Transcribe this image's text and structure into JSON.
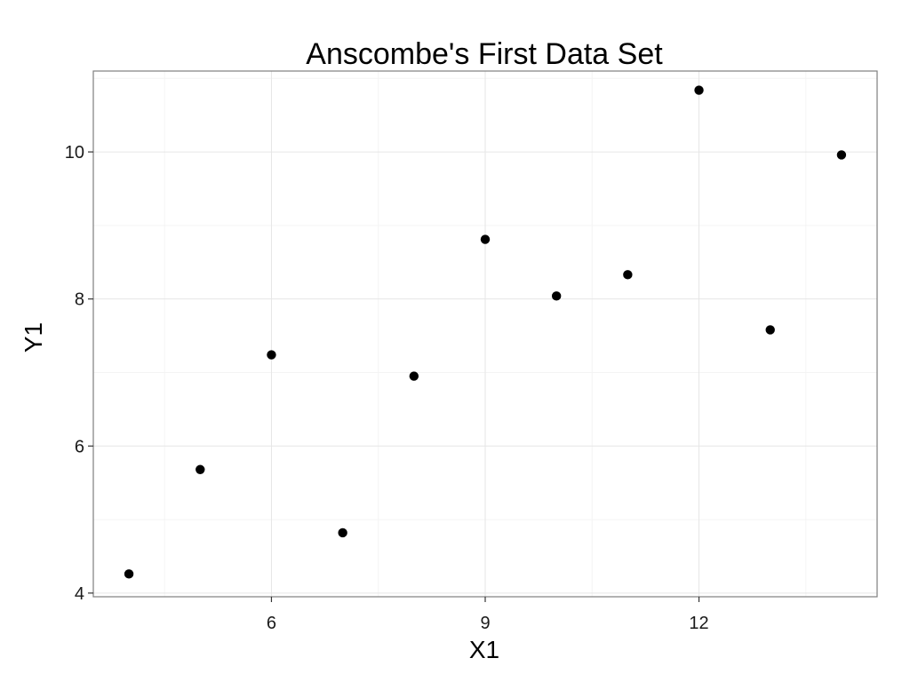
{
  "chart_data": {
    "type": "scatter",
    "title": "Anscombe's First Data Set",
    "xlabel": "X1",
    "ylabel": "Y1",
    "xlim": [
      3.5,
      14.5
    ],
    "ylim": [
      3.95,
      11.1
    ],
    "x_ticks": [
      6,
      9,
      12
    ],
    "y_ticks": [
      4,
      6,
      8,
      10
    ],
    "x_tick_labels": [
      "6",
      "9",
      "12"
    ],
    "y_tick_labels": [
      "4",
      "6",
      "8",
      "10"
    ],
    "x_minor": [
      4.5,
      7.5,
      10.5,
      13.5
    ],
    "y_minor": [
      5,
      7,
      9,
      11
    ],
    "grid": true,
    "legend": "none",
    "point_color": "#000000",
    "points": [
      {
        "x": 10,
        "y": 8.04
      },
      {
        "x": 8,
        "y": 6.95
      },
      {
        "x": 13,
        "y": 7.58
      },
      {
        "x": 9,
        "y": 8.81
      },
      {
        "x": 11,
        "y": 8.33
      },
      {
        "x": 14,
        "y": 9.96
      },
      {
        "x": 6,
        "y": 7.24
      },
      {
        "x": 4,
        "y": 4.26
      },
      {
        "x": 12,
        "y": 10.84
      },
      {
        "x": 7,
        "y": 4.82
      },
      {
        "x": 5,
        "y": 5.68
      }
    ]
  }
}
